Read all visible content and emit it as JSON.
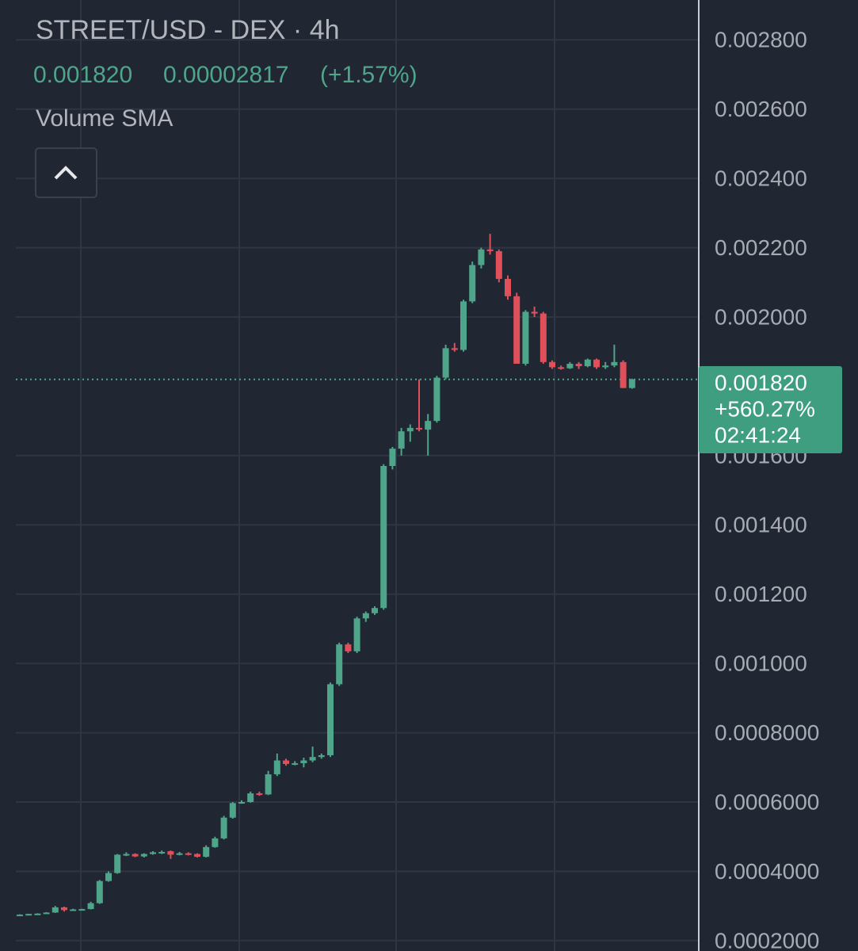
{
  "header": {
    "title": "STREET/USD - DEX · 4h",
    "close": "0.001820",
    "change": "0.00002817",
    "change_pct": "(+1.57%)",
    "indicator": "Volume SMA"
  },
  "badge": {
    "price": "0.001820",
    "change": "+560.27%",
    "countdown": "02:41:24"
  },
  "chart_data": {
    "type": "candlestick",
    "up_color": "#4ea58a",
    "down_color": "#e0505a",
    "grid": true,
    "ylim": [
      0.00017,
      0.002915
    ],
    "yticks": [
      {
        "value": 0.0028,
        "label": "0.002800"
      },
      {
        "value": 0.0026,
        "label": "0.002600"
      },
      {
        "value": 0.0024,
        "label": "0.002400"
      },
      {
        "value": 0.0022,
        "label": "0.002200"
      },
      {
        "value": 0.002,
        "label": "0.002000"
      },
      {
        "value": 0.0016,
        "label": "0.001600"
      },
      {
        "value": 0.0014,
        "label": "0.001400"
      },
      {
        "value": 0.0012,
        "label": "0.001200"
      },
      {
        "value": 0.001,
        "label": "0.001000"
      },
      {
        "value": 0.0008,
        "label": "0.0008000"
      },
      {
        "value": 0.0006,
        "label": "0.0006000"
      },
      {
        "value": 0.0004,
        "label": "0.0004000"
      },
      {
        "value": 0.0002,
        "label": "0.0002000"
      }
    ],
    "last_price": 0.00182,
    "open": [
      0.000274,
      0.000275,
      0.000277,
      0.000278,
      0.000281,
      0.000296,
      0.000288,
      0.00029,
      0.000291,
      0.000308,
      0.000372,
      0.000395,
      0.000448,
      0.00045,
      0.000443,
      0.00045,
      0.000455,
      0.000458,
      0.000448,
      0.000452,
      0.00045,
      0.000442,
      0.00047,
      0.000495,
      0.000555,
      0.000597,
      0.0006,
      0.000625,
      0.000622,
      0.00068,
      0.00072,
      0.00071,
      0.000712,
      0.00072,
      0.00073,
      0.000735,
      0.00094,
      0.001055,
      0.001035,
      0.00113,
      0.001145,
      0.00116,
      0.00157,
      0.00162,
      0.00167,
      0.00168,
      0.001675,
      0.0017,
      0.001825,
      0.00191,
      0.001905,
      0.002045,
      0.00215,
      0.002195,
      0.00219,
      0.00211,
      0.00206,
      0.001865,
      0.002015,
      0.00201,
      0.00187,
      0.001855,
      0.001852,
      0.001865,
      0.001858,
      0.001877,
      0.001855,
      0.00186,
      0.00187,
      0.001795
    ],
    "high": [
      0.000276,
      0.000277,
      0.000279,
      0.000282,
      0.0003,
      0.000298,
      0.000292,
      0.000292,
      0.000312,
      0.000375,
      0.0004,
      0.00045,
      0.000455,
      0.000452,
      0.000452,
      0.000458,
      0.00046,
      0.00046,
      0.000456,
      0.000455,
      0.000452,
      0.000475,
      0.0005,
      0.00056,
      0.0006,
      0.000605,
      0.00063,
      0.00063,
      0.00069,
      0.00074,
      0.000725,
      0.000718,
      0.000728,
      0.00076,
      0.00074,
      0.000945,
      0.00106,
      0.00106,
      0.001135,
      0.00115,
      0.001165,
      0.001575,
      0.001625,
      0.00168,
      0.00169,
      0.00182,
      0.00172,
      0.00183,
      0.00192,
      0.001925,
      0.00205,
      0.00216,
      0.0022,
      0.00224,
      0.002195,
      0.00212,
      0.00207,
      0.00202,
      0.00203,
      0.002015,
      0.001875,
      0.00186,
      0.00187,
      0.00187,
      0.00188,
      0.00188,
      0.00187,
      0.00192,
      0.001875,
      0.001822
    ],
    "low": [
      0.000273,
      0.000274,
      0.000276,
      0.000277,
      0.00028,
      0.000284,
      0.000286,
      0.000288,
      0.00029,
      0.000306,
      0.00037,
      0.000393,
      0.000444,
      0.000441,
      0.00044,
      0.000448,
      0.00045,
      0.000436,
      0.000446,
      0.000446,
      0.00044,
      0.00044,
      0.000468,
      0.000492,
      0.000552,
      0.000595,
      0.000598,
      0.000618,
      0.00062,
      0.000675,
      0.000705,
      0.000706,
      0.0007,
      0.000715,
      0.000725,
      0.00073,
      0.000935,
      0.00103,
      0.00103,
      0.00112,
      0.00114,
      0.001155,
      0.00156,
      0.0016,
      0.00164,
      0.00167,
      0.0016,
      0.001695,
      0.00182,
      0.0019,
      0.0019,
      0.00204,
      0.00214,
      0.00218,
      0.0021,
      0.00205,
      0.001865,
      0.00186,
      0.002,
      0.001865,
      0.00185,
      0.001848,
      0.00185,
      0.00185,
      0.001855,
      0.00185,
      0.00185,
      0.001855,
      0.001795,
      0.001793
    ],
    "close": [
      0.000275,
      0.000277,
      0.000278,
      0.000281,
      0.000296,
      0.000288,
      0.00029,
      0.000291,
      0.000308,
      0.000372,
      0.000395,
      0.000448,
      0.00045,
      0.000443,
      0.00045,
      0.000455,
      0.000456,
      0.000448,
      0.000452,
      0.00045,
      0.000442,
      0.00047,
      0.000495,
      0.000555,
      0.000597,
      0.0006,
      0.000625,
      0.000622,
      0.00068,
      0.00072,
      0.00071,
      0.000712,
      0.00072,
      0.00073,
      0.000735,
      0.00094,
      0.001055,
      0.001035,
      0.00113,
      0.001145,
      0.00116,
      0.00157,
      0.00162,
      0.00167,
      0.00168,
      0.001675,
      0.0017,
      0.001825,
      0.00191,
      0.001905,
      0.002045,
      0.00215,
      0.002195,
      0.00219,
      0.00211,
      0.00206,
      0.001865,
      0.002015,
      0.00201,
      0.00187,
      0.001855,
      0.001852,
      0.001865,
      0.001858,
      0.001877,
      0.001855,
      0.00186,
      0.00187,
      0.001795,
      0.00182
    ]
  }
}
